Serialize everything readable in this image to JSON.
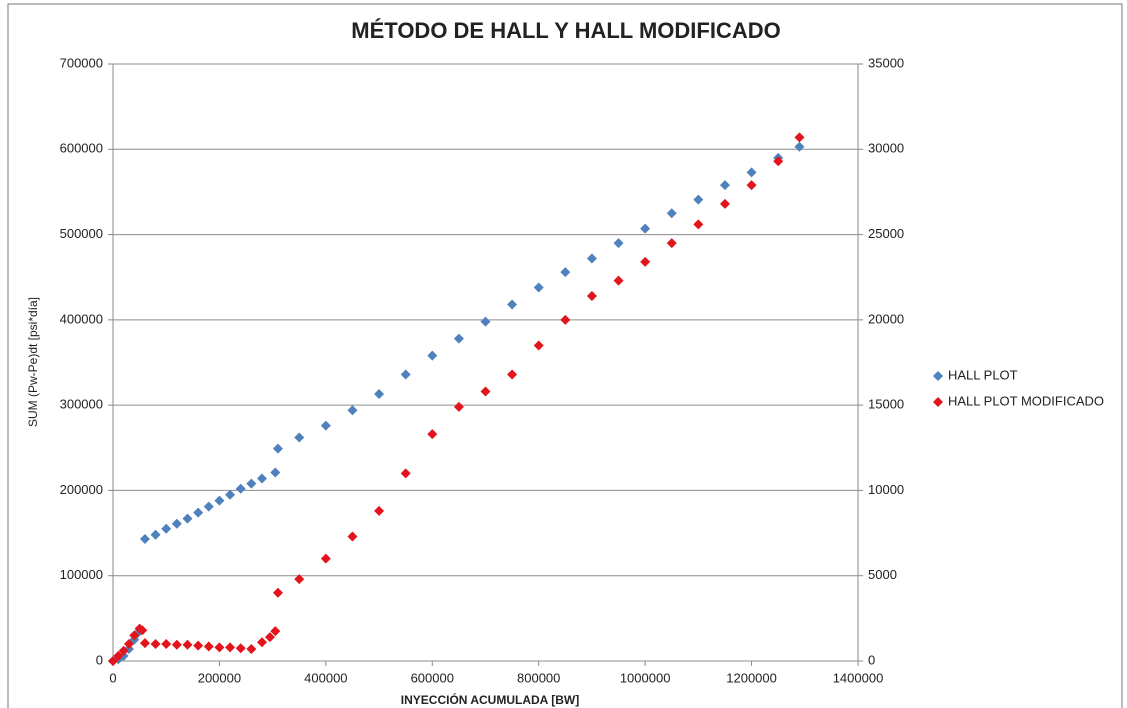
{
  "chart_data": {
    "type": "scatter",
    "title": "MÉTODO DE HALL Y HALL MODIFICADO",
    "xlabel": "INYECCIÓN ACUMULADA [BW]",
    "ylabel": "SUM (Pw-Pe)dt [psi*día]",
    "xlim": [
      0,
      1400000
    ],
    "xticks": [
      0,
      200000,
      400000,
      600000,
      800000,
      1000000,
      1200000,
      1400000
    ],
    "ylim": [
      0,
      700000
    ],
    "yticks": [
      0,
      100000,
      200000,
      300000,
      400000,
      500000,
      600000,
      700000
    ],
    "y2lim": [
      0,
      35000
    ],
    "y2ticks": [
      0,
      5000,
      10000,
      15000,
      20000,
      25000,
      30000,
      35000
    ],
    "grid": true,
    "legend": "right",
    "series": [
      {
        "name": "HALL PLOT",
        "color": "#4f81bd",
        "axis": "y",
        "x": [
          0,
          10000,
          20000,
          30000,
          40000,
          45000,
          50000,
          60000,
          80000,
          100000,
          120000,
          140000,
          160000,
          180000,
          200000,
          220000,
          240000,
          260000,
          280000,
          305000,
          310000,
          350000,
          400000,
          450000,
          500000,
          550000,
          600000,
          650000,
          700000,
          750000,
          800000,
          850000,
          900000,
          950000,
          1000000,
          1050000,
          1100000,
          1150000,
          1200000,
          1250000,
          1290000
        ],
        "values": [
          0,
          2000,
          6000,
          14000,
          25000,
          32000,
          35000,
          143000,
          148000,
          155000,
          161000,
          167000,
          174000,
          181000,
          188000,
          195000,
          202000,
          208000,
          214000,
          221000,
          249000,
          262000,
          276000,
          294000,
          313000,
          336000,
          358000,
          378000,
          398000,
          418000,
          438000,
          456000,
          472000,
          490000,
          507000,
          525000,
          541000,
          558000,
          573000,
          590000,
          603000
        ]
      },
      {
        "name": "HALL PLOT MODIFICADO",
        "color": "#e3141b",
        "axis": "y2",
        "x": [
          0,
          10000,
          20000,
          30000,
          40000,
          50000,
          55000,
          60000,
          80000,
          100000,
          120000,
          140000,
          160000,
          180000,
          200000,
          220000,
          240000,
          260000,
          280000,
          295000,
          305000,
          310000,
          350000,
          400000,
          450000,
          500000,
          550000,
          600000,
          650000,
          700000,
          750000,
          800000,
          850000,
          900000,
          950000,
          1000000,
          1050000,
          1100000,
          1150000,
          1200000,
          1250000,
          1290000
        ],
        "values": [
          0,
          300,
          600,
          1000,
          1500,
          1900,
          1800,
          1050,
          1000,
          1000,
          950,
          950,
          900,
          850,
          800,
          800,
          750,
          700,
          1100,
          1400,
          1750,
          4000,
          4800,
          6000,
          7300,
          8800,
          11000,
          13300,
          14900,
          15800,
          16800,
          18500,
          20000,
          21400,
          22300,
          23400,
          24500,
          25600,
          26800,
          27900,
          29300,
          30700
        ]
      }
    ]
  }
}
